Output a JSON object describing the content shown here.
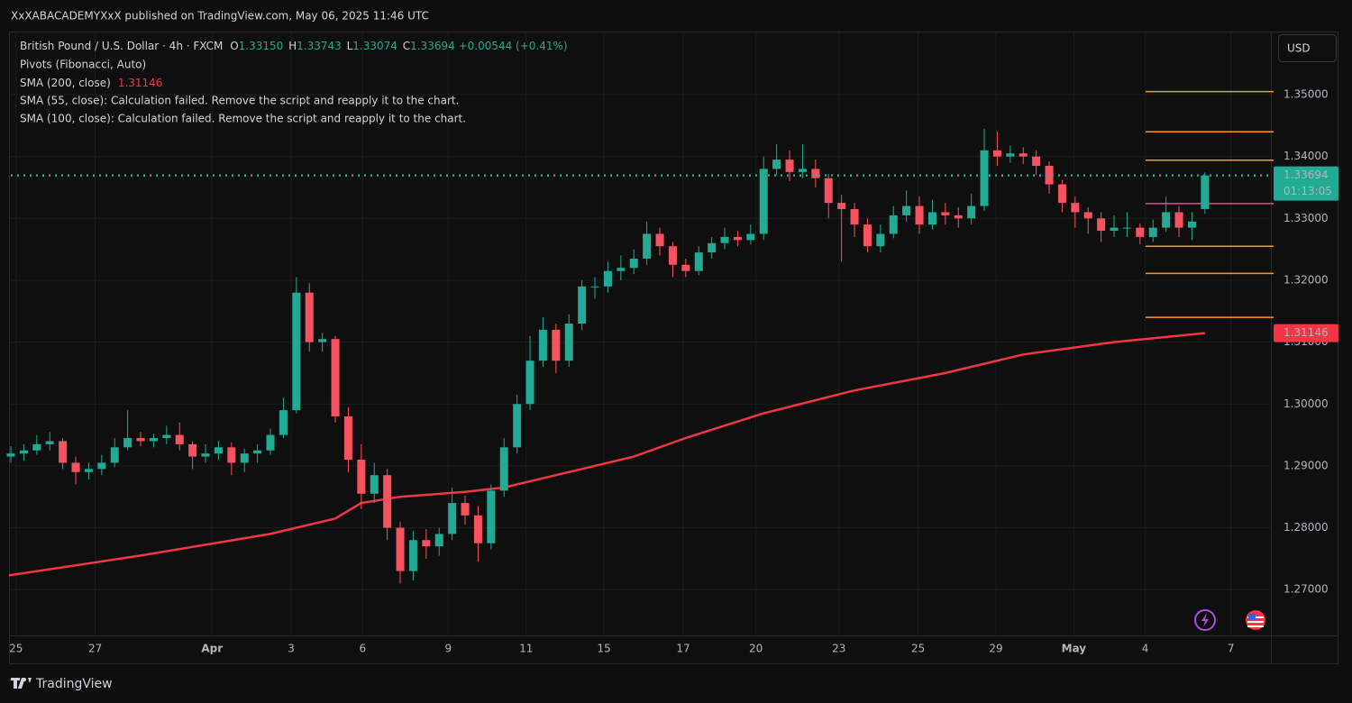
{
  "header": {
    "published": "XxXABACADEMYXxX published on TradingView.com, May 06, 2025 11:46 UTC"
  },
  "legend": {
    "symbol": "British Pound / U.S. Dollar · 4h · FXCM",
    "ohlc": [
      {
        "key": "O",
        "text": "1.33150"
      },
      {
        "key": "H",
        "text": "1.33743"
      },
      {
        "key": "L",
        "text": "1.33074"
      },
      {
        "key": "C",
        "text": "1.33694"
      }
    ],
    "change": "+0.00544 (+0.41%)",
    "indicators": [
      "Pivots (Fibonacci, Auto)",
      "SMA (200, close)",
      "SMA (55, close): Calculation failed. Remove the script and reapply it to the chart.",
      "SMA (100, close): Calculation failed. Remove the script and reapply it to the chart."
    ]
  },
  "currency": "USD",
  "brand": "TradingView",
  "chart_data": {
    "type": "candlestick",
    "up_color": "#22ab94",
    "down_color": "#f7525f",
    "open": [
      1.2915,
      1.292,
      1.2925,
      1.2935,
      1.294,
      1.2905,
      1.289,
      1.2895,
      1.2905,
      1.293,
      1.2945,
      1.294,
      1.2945,
      1.295,
      1.2935,
      1.2915,
      1.292,
      1.293,
      1.2905,
      1.292,
      1.2925,
      1.295,
      1.299,
      1.318,
      1.31,
      1.3105,
      1.298,
      1.291,
      1.2855,
      1.2885,
      1.28,
      1.273,
      1.278,
      1.277,
      1.279,
      1.284,
      1.282,
      1.2775,
      1.286,
      1.293,
      1.3,
      1.307,
      1.312,
      1.307,
      1.313,
      1.319,
      1.319,
      1.3215,
      1.322,
      1.3235,
      1.3275,
      1.3255,
      1.3225,
      1.3215,
      1.3245,
      1.326,
      1.327,
      1.3265,
      1.3275,
      1.338,
      1.3395,
      1.3375,
      1.338,
      1.3365,
      1.3325,
      1.3315,
      1.329,
      1.3255,
      1.3275,
      1.3305,
      1.332,
      1.329,
      1.331,
      1.3305,
      1.33,
      1.332,
      1.341,
      1.34,
      1.3405,
      1.34,
      1.3385,
      1.3355,
      1.3325,
      1.331,
      1.33,
      1.328,
      1.3285,
      1.3285,
      1.327,
      1.3285,
      1.331,
      1.3285,
      1.3315
    ],
    "high": [
      1.2932,
      1.2935,
      1.295,
      1.2955,
      1.2945,
      1.2915,
      1.2905,
      1.2918,
      1.2945,
      1.299,
      1.2955,
      1.2952,
      1.2965,
      1.297,
      1.294,
      1.2935,
      1.294,
      1.2938,
      1.2928,
      1.2935,
      1.296,
      1.301,
      1.3205,
      1.3195,
      1.3115,
      1.311,
      1.2995,
      1.2935,
      1.2905,
      1.2895,
      1.281,
      1.2795,
      1.2798,
      1.28,
      1.2865,
      1.2852,
      1.2835,
      1.287,
      1.2945,
      1.3015,
      1.311,
      1.314,
      1.313,
      1.3145,
      1.32,
      1.3205,
      1.323,
      1.324,
      1.325,
      1.3295,
      1.3285,
      1.3262,
      1.3235,
      1.3255,
      1.327,
      1.3285,
      1.328,
      1.329,
      1.34,
      1.342,
      1.341,
      1.342,
      1.3395,
      1.3372,
      1.3338,
      1.3325,
      1.33,
      1.329,
      1.332,
      1.3345,
      1.3335,
      1.333,
      1.3325,
      1.3318,
      1.334,
      1.3445,
      1.344,
      1.3418,
      1.3415,
      1.341,
      1.3392,
      1.3362,
      1.3335,
      1.3318,
      1.331,
      1.3305,
      1.331,
      1.3292,
      1.3298,
      1.3335,
      1.332,
      1.331,
      1.33743
    ],
    "low": [
      1.2905,
      1.2908,
      1.2918,
      1.2925,
      1.2895,
      1.287,
      1.2878,
      1.2885,
      1.2898,
      1.2925,
      1.2932,
      1.293,
      1.2935,
      1.2925,
      1.2895,
      1.2905,
      1.291,
      1.2885,
      1.289,
      1.2905,
      1.2918,
      1.2945,
      1.2985,
      1.3085,
      1.3085,
      1.297,
      1.289,
      1.283,
      1.284,
      1.278,
      1.271,
      1.2715,
      1.275,
      1.2755,
      1.278,
      1.2805,
      1.2745,
      1.2765,
      1.285,
      1.292,
      1.299,
      1.306,
      1.305,
      1.306,
      1.312,
      1.317,
      1.318,
      1.32,
      1.321,
      1.3225,
      1.324,
      1.3205,
      1.3205,
      1.3208,
      1.3235,
      1.325,
      1.3255,
      1.3258,
      1.3265,
      1.337,
      1.336,
      1.3365,
      1.335,
      1.33,
      1.323,
      1.327,
      1.3245,
      1.3245,
      1.3268,
      1.3295,
      1.3275,
      1.3282,
      1.329,
      1.3285,
      1.329,
      1.3312,
      1.3385,
      1.339,
      1.3388,
      1.337,
      1.334,
      1.331,
      1.3285,
      1.3275,
      1.3262,
      1.327,
      1.327,
      1.3258,
      1.3262,
      1.3278,
      1.327,
      1.3265,
      1.33074
    ],
    "close": [
      1.292,
      1.2925,
      1.2935,
      1.294,
      1.2905,
      1.289,
      1.2895,
      1.2905,
      1.293,
      1.2945,
      1.294,
      1.2945,
      1.295,
      1.2935,
      1.2915,
      1.292,
      1.293,
      1.2905,
      1.292,
      1.2925,
      1.295,
      1.299,
      1.318,
      1.31,
      1.3105,
      1.298,
      1.291,
      1.2855,
      1.2885,
      1.28,
      1.273,
      1.278,
      1.277,
      1.279,
      1.284,
      1.282,
      1.2775,
      1.286,
      1.293,
      1.3,
      1.307,
      1.312,
      1.307,
      1.313,
      1.319,
      1.319,
      1.3215,
      1.322,
      1.3235,
      1.3275,
      1.3255,
      1.3225,
      1.3215,
      1.3245,
      1.326,
      1.327,
      1.3265,
      1.3275,
      1.338,
      1.3395,
      1.3375,
      1.338,
      1.3365,
      1.3325,
      1.3315,
      1.329,
      1.3255,
      1.3275,
      1.3305,
      1.332,
      1.329,
      1.331,
      1.3305,
      1.33,
      1.332,
      1.341,
      1.34,
      1.3405,
      1.34,
      1.3385,
      1.3355,
      1.3325,
      1.331,
      1.33,
      1.328,
      1.3285,
      1.3285,
      1.327,
      1.3285,
      1.331,
      1.3285,
      1.3295,
      1.33694
    ],
    "sma": {
      "color": "#f23645",
      "x": [
        -0.14,
        10,
        20,
        25,
        27,
        30,
        35,
        38,
        42,
        48,
        52,
        58,
        65,
        72,
        78,
        85,
        92
      ],
      "values": [
        1.2723,
        1.2755,
        1.279,
        1.2815,
        1.284,
        1.285,
        1.2858,
        1.2865,
        1.2885,
        1.2915,
        1.2945,
        1.2985,
        1.3022,
        1.305,
        1.308,
        1.31,
        1.31146
      ],
      "last": {
        "value": 1.31146,
        "label": "1.31146"
      }
    },
    "pivots": {
      "color": "#f59c1a",
      "mid_color": "#e84d8a",
      "levels": [
        1.3505,
        1.344,
        1.3394,
        1.3324,
        1.3255,
        1.3211,
        1.314
      ]
    },
    "last_price": {
      "value": 1.33694,
      "label": "1.33694",
      "countdown": "01:13:05",
      "color": "#22ab94"
    },
    "ylim": [
      1.2626,
      1.3602
    ],
    "yticks": [
      {
        "value": 1.35,
        "label": "1.35000"
      },
      {
        "value": 1.34,
        "label": "1.34000"
      },
      {
        "value": 1.33,
        "label": "1.33000"
      },
      {
        "value": 1.32,
        "label": "1.32000"
      },
      {
        "value": 1.31,
        "label": "1.31000"
      },
      {
        "value": 1.3,
        "label": "1.30000"
      },
      {
        "value": 1.29,
        "label": "1.29000"
      },
      {
        "value": 1.28,
        "label": "1.28000"
      },
      {
        "value": 1.27,
        "label": "1.27000"
      }
    ],
    "xlim": [
      -0.14,
      97.08
    ],
    "xticks": [
      {
        "value": 0.4,
        "label": "25"
      },
      {
        "value": 6.5,
        "label": "27"
      },
      {
        "value": 15.5,
        "label": "Apr"
      },
      {
        "value": 21.6,
        "label": "3"
      },
      {
        "value": 27.1,
        "label": "6"
      },
      {
        "value": 33.7,
        "label": "9"
      },
      {
        "value": 39.7,
        "label": "11"
      },
      {
        "value": 45.7,
        "label": "15"
      },
      {
        "value": 51.8,
        "label": "17"
      },
      {
        "value": 57.4,
        "label": "20"
      },
      {
        "value": 63.8,
        "label": "23"
      },
      {
        "value": 69.9,
        "label": "25"
      },
      {
        "value": 75.9,
        "label": "29"
      },
      {
        "value": 81.9,
        "label": "May"
      },
      {
        "value": 87.4,
        "label": "4"
      },
      {
        "value": 94.0,
        "label": "7"
      }
    ],
    "grid": true
  }
}
